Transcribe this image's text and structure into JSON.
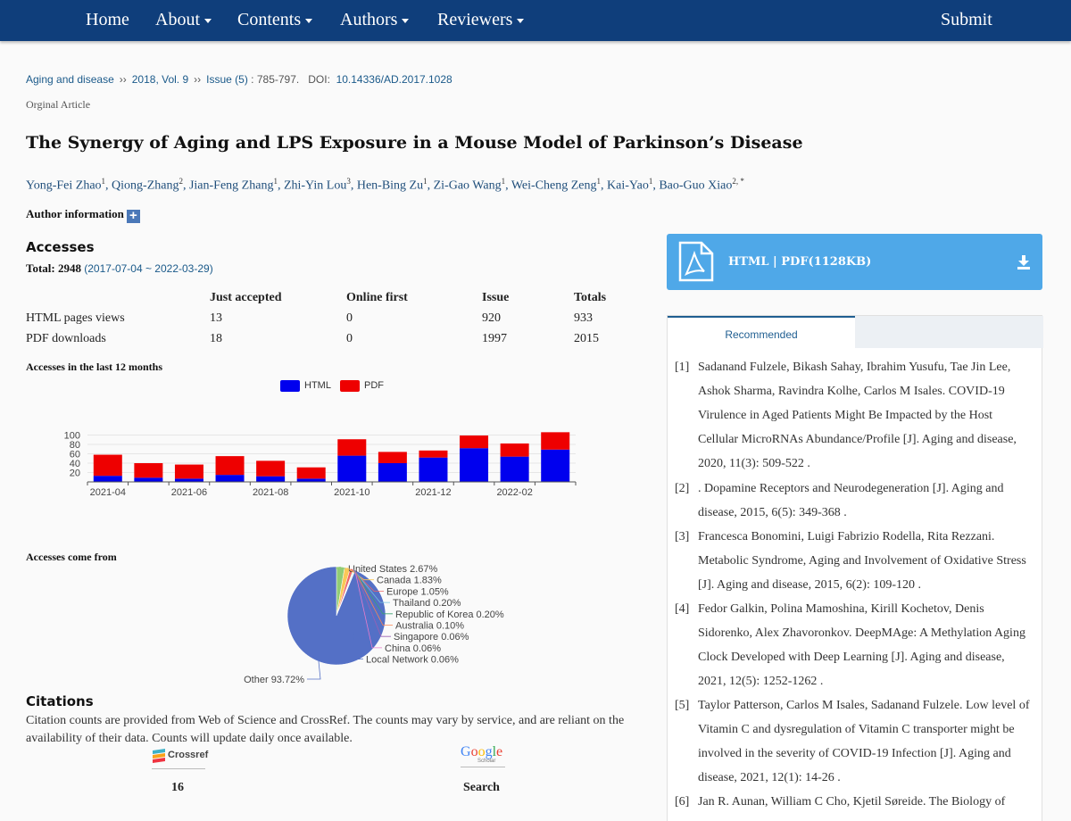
{
  "nav": {
    "home": "Home",
    "about": "About",
    "contents": "Contents",
    "authors": "Authors",
    "reviewers": "Reviewers",
    "submit": "Submit"
  },
  "breadcrumb": {
    "journal": "Aging and disease",
    "volume": "2018, Vol. 9",
    "issue": "Issue (5)",
    "pages": ": 785-797.",
    "doi_label": "DOI:",
    "doi": "10.14336/AD.2017.1028"
  },
  "article": {
    "type": "Orginal Article",
    "title": "The Synergy of Aging and LPS Exposure in a Mouse Model of Parkinson’s Disease",
    "authors": [
      {
        "name": "Yong-Fei Zhao",
        "sup": "1"
      },
      {
        "name": "Qiong-Zhang",
        "sup": "2"
      },
      {
        "name": "Jian-Feng Zhang",
        "sup": "1"
      },
      {
        "name": "Zhi-Yin Lou",
        "sup": "3"
      },
      {
        "name": "Hen-Bing Zu",
        "sup": "1"
      },
      {
        "name": "Zi-Gao Wang",
        "sup": "1"
      },
      {
        "name": "Wei-Cheng Zeng",
        "sup": "1"
      },
      {
        "name": "Kai-Yao",
        "sup": "1"
      },
      {
        "name": "Bao-Guo Xiao",
        "sup": "2, *"
      }
    ],
    "author_info": "Author information"
  },
  "accesses": {
    "heading": "Accesses",
    "total_label": "Total: 2948",
    "total_range": "(2017-07-04 ~ 2022-03-29)",
    "columns": [
      "Just accepted",
      "Online first",
      "Issue",
      "Totals"
    ],
    "rows": [
      {
        "label": "HTML pages views",
        "values": [
          "13",
          "0",
          "920",
          "933"
        ]
      },
      {
        "label": "PDF downloads",
        "values": [
          "18",
          "0",
          "1997",
          "2015"
        ]
      }
    ],
    "chart_title": "Accesses in the last 12 months",
    "pie_title": "Accesses come from"
  },
  "chart_data": [
    {
      "type": "bar",
      "stacked": true,
      "title": "",
      "categories": [
        "2021-04",
        "2021-05",
        "2021-06",
        "2021-07",
        "2021-08",
        "2021-09",
        "2021-10",
        "2021-11",
        "2021-12",
        "2022-01",
        "2022-02",
        "2022-03"
      ],
      "tick_labels": [
        "2021-04",
        "2021-06",
        "2021-08",
        "2021-10",
        "2021-12",
        "2022-02"
      ],
      "series": [
        {
          "name": "HTML",
          "color": "#0000ee",
          "values": [
            13,
            9,
            7,
            15,
            12,
            7,
            56,
            40,
            52,
            72,
            54,
            69
          ]
        },
        {
          "name": "PDF",
          "color": "#ee0000",
          "values": [
            45,
            31,
            30,
            40,
            33,
            24,
            35,
            24,
            15,
            27,
            28,
            37
          ]
        }
      ],
      "yticks": [
        20,
        40,
        60,
        80,
        100
      ],
      "ylim": [
        0,
        110
      ],
      "legend": "top-center",
      "grid": true
    },
    {
      "type": "pie",
      "title": "",
      "slices": [
        {
          "label": "United States 2.67%",
          "value": 2.67,
          "color": "#91cc75"
        },
        {
          "label": "Canada 1.83%",
          "value": 1.83,
          "color": "#fac858"
        },
        {
          "label": "Europe 1.05%",
          "value": 1.05,
          "color": "#ee6666"
        },
        {
          "label": "Thailand 0.20%",
          "value": 0.2,
          "color": "#73c0de"
        },
        {
          "label": "Republic of Korea 0.20%",
          "value": 0.2,
          "color": "#3ba272"
        },
        {
          "label": "Australia 0.10%",
          "value": 0.1,
          "color": "#fc8452"
        },
        {
          "label": "Singapore 0.06%",
          "value": 0.06,
          "color": "#9a60b4"
        },
        {
          "label": "China 0.06%",
          "value": 0.06,
          "color": "#ea7ccc"
        },
        {
          "label": "Local Network 0.06%",
          "value": 0.06,
          "color": "#5470c6"
        },
        {
          "label": "Other 93.72%",
          "value": 93.72,
          "color": "#5470c6"
        }
      ]
    }
  ],
  "citations": {
    "heading": "Citations",
    "text": "Citation counts are provided from Web of Science and CrossRef. The counts may vary by service, and are reliant on the availability of their data. Counts will update daily once available.",
    "crossref_logo": "Crossref",
    "crossref_count": "16",
    "google_logo": "Google",
    "google_sub": "Scholar",
    "google_label": "Search"
  },
  "download": {
    "label": "HTML | PDF(1128KB)",
    "icon": "pdf-file-icon",
    "download_icon": "download-icon"
  },
  "recommended": {
    "tab": "Recommended",
    "items": [
      {
        "num": "[1]",
        "text": "Sadanand Fulzele, Bikash Sahay, Ibrahim Yusufu, Tae Jin Lee, Ashok Sharma, Ravindra Kolhe, Carlos M Isales. COVID-19 Virulence in Aged Patients Might Be Impacted by the Host Cellular MicroRNAs Abundance/Profile [J]. Aging and disease, 2020, 11(3): 509-522 ."
      },
      {
        "num": "[2]",
        "text": ". Dopamine Receptors and Neurodegeneration [J]. Aging and disease, 2015, 6(5): 349-368 ."
      },
      {
        "num": "[3]",
        "text": "Francesca Bonomini, Luigi Fabrizio Rodella, Rita Rezzani. Metabolic Syndrome, Aging and Involvement of Oxidative Stress [J]. Aging and disease, 2015, 6(2): 109-120 ."
      },
      {
        "num": "[4]",
        "text": "Fedor Galkin, Polina Mamoshina, Kirill Kochetov, Denis Sidorenko, Alex Zhavoronkov. DeepMAge: A Methylation Aging Clock Developed with Deep Learning [J]. Aging and disease, 2021, 12(5): 1252-1262 ."
      },
      {
        "num": "[5]",
        "text": "Taylor Patterson, Carlos M Isales, Sadanand Fulzele. Low level of Vitamin C and dysregulation of Vitamin C transporter might be involved in the severity of COVID-19 Infection [J]. Aging and disease, 2021, 12(1): 14-26 ."
      },
      {
        "num": "[6]",
        "text": "Jan R. Aunan, William C Cho, Kjetil Søreide. The Biology of"
      }
    ]
  }
}
